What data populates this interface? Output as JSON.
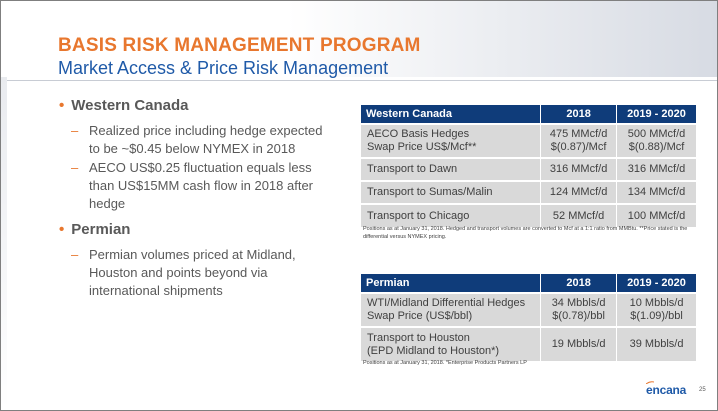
{
  "header": {
    "title": "BASIS RISK MANAGEMENT PROGRAM",
    "subtitle": "Market Access & Price Risk Management"
  },
  "bullets": {
    "bullet_glyph": "•",
    "dash_glyph": "–",
    "western_canada": {
      "title": "Western Canada",
      "subs": [
        "Realized price including hedge expected to be ~$0.45 below NYMEX in 2018",
        "AECO US$0.25 fluctuation equals less than US$15MM cash flow in 2018 after hedge"
      ]
    },
    "permian": {
      "title": "Permian",
      "subs": [
        "Permian volumes priced at Midland, Houston and points beyond via international shipments"
      ]
    }
  },
  "western_table": {
    "headers": [
      "Western Canada",
      "2018",
      "2019 - 2020"
    ],
    "rows": [
      {
        "label1": "AECO Basis Hedges",
        "label2": "Swap Price US$/Mcf**",
        "v1a": "475 MMcf/d",
        "v1b": "$(0.87)/Mcf",
        "v2a": "500 MMcf/d",
        "v2b": "$(0.88)/Mcf"
      },
      {
        "label": "Transport to Dawn",
        "v1": "316 MMcf/d",
        "v2": "316 MMcf/d"
      },
      {
        "label": "Transport to Sumas/Malin",
        "v1": "124 MMcf/d",
        "v2": "134 MMcf/d"
      },
      {
        "label": "Transport to Chicago",
        "v1": "52 MMcf/d",
        "v2": "100 MMcf/d"
      }
    ],
    "footnote": "Positions as at January 31, 2018. Hedged and transport volumes are converted to Mcf at a 1:1 ratio from MMBtu. **Price stated is the differential versus NYMEX pricing."
  },
  "permian_table": {
    "headers": [
      "Permian",
      "2018",
      "2019 - 2020"
    ],
    "rows": [
      {
        "label1": "WTI/Midland Differential Hedges",
        "label2": "Swap Price (US$/bbl)",
        "v1a": "34 Mbbls/d",
        "v1b": "$(0.78)/bbl",
        "v2a": "10 Mbbls/d",
        "v2b": "$(1.09)/bbl"
      },
      {
        "label1": "Transport to Houston",
        "label2": "(EPD Midland to Houston*)",
        "v1": "19 Mbbls/d",
        "v2": "39 Mbbls/d"
      }
    ],
    "footnote": "Positions as at January 31, 2018. *Enterprise Products Partners LP"
  },
  "footer": {
    "logo_text": "encana",
    "page_number": "25"
  },
  "colors": {
    "accent_orange": "#e8772e",
    "brand_blue": "#1f5aa8",
    "table_header": "#0f3c7a",
    "table_row": "#d9d9d9"
  }
}
